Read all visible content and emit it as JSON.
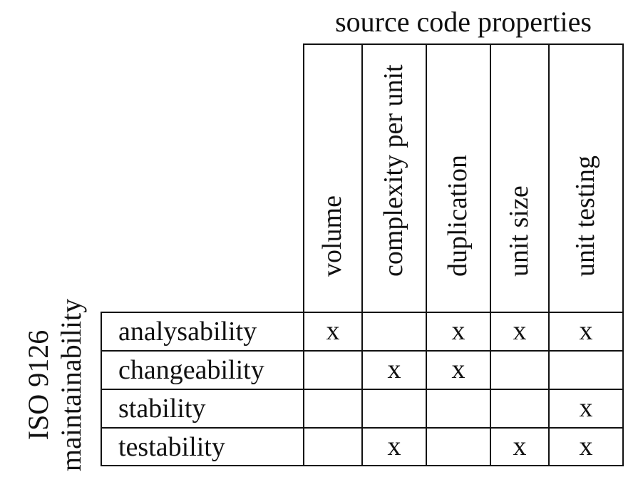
{
  "top_title": "source code properties",
  "side_title": {
    "line1": "ISO 9126",
    "line2": "maintainability"
  },
  "columns": [
    "volume",
    "complexity per unit",
    "duplication",
    "unit size",
    "unit testing"
  ],
  "rows": [
    {
      "label": "analysability",
      "marks": [
        "x",
        "",
        "x",
        "x",
        "x"
      ]
    },
    {
      "label": "changeability",
      "marks": [
        "",
        "x",
        "x",
        "",
        ""
      ]
    },
    {
      "label": "stability",
      "marks": [
        "",
        "",
        "",
        "",
        "x"
      ]
    },
    {
      "label": "testability",
      "marks": [
        "",
        "x",
        "",
        "x",
        "x"
      ]
    }
  ]
}
